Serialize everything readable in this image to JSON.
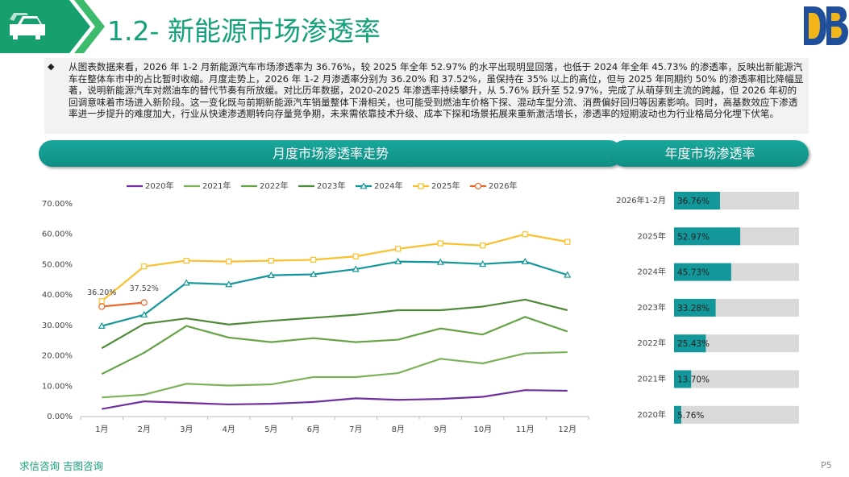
{
  "header": {
    "title": "1.2- 新能源市场渗透率"
  },
  "summary": {
    "text": "从图表数据来看，2026 年 1-2 月新能源汽车市场渗透率为 36.76%，较 2025 年全年 52.97% 的水平出现明显回落，也低于 2024 年全年 45.73% 的渗透率，反映出新能源汽车在整体车市中的占比暂时收缩。月度走势上，2026 年 1-2 月渗透率分别为 36.20% 和 37.52%，虽保持在 35% 以上的高位，但与 2025 年同期约 50% 的渗透率相比降幅显著，说明新能源汽车对燃油车的替代节奏有所放缓。对比历年数据，2020-2025 年渗透率持续攀升，从 5.76% 跃升至 52.97%，完成了从萌芽到主流的跨越，但 2026 年初的回调意味着市场进入新阶段。这一变化既与前期新能源汽车销量整体下滑相关，也可能受到燃油车价格下探、混动车型分流、消费偏好回归等因素影响。同时，高基数效应下渗透率进一步提升的难度加大，行业从快速渗透期转向存量竞争期，未来需依靠技术升级、成本下探和场景拓展来重新激活增长，渗透率的短期波动也为行业格局分化埋下伏笔。"
  },
  "chart_data": [
    {
      "type": "line",
      "title": "月度市场渗透率走势",
      "categories": [
        "1月",
        "2月",
        "3月",
        "4月",
        "5月",
        "6月",
        "7月",
        "8月",
        "9月",
        "10月",
        "11月",
        "12月"
      ],
      "series": [
        {
          "name": "2020年",
          "color": "#7030a0",
          "values": [
            2.5,
            5.0,
            4.5,
            4.0,
            4.2,
            4.8,
            6.0,
            5.5,
            5.8,
            6.5,
            8.7,
            8.5
          ]
        },
        {
          "name": "2021年",
          "color": "#7cb35a",
          "values": [
            6.3,
            7.2,
            10.8,
            10.2,
            10.6,
            13.0,
            13.0,
            14.3,
            19.0,
            17.5,
            20.8,
            21.2
          ]
        },
        {
          "name": "2022年",
          "color": "#64a444",
          "values": [
            14.0,
            21.0,
            29.8,
            26.0,
            24.5,
            25.8,
            24.5,
            25.3,
            29.0,
            27.0,
            32.8,
            28.0
          ]
        },
        {
          "name": "2023年",
          "color": "#4e8b36",
          "values": [
            22.5,
            30.5,
            32.3,
            30.3,
            31.5,
            32.5,
            33.5,
            35.0,
            35.0,
            36.2,
            38.5,
            35.0
          ]
        },
        {
          "name": "2024年",
          "color": "#13979a",
          "marker": "triangle",
          "values": [
            29.8,
            33.5,
            44.0,
            43.5,
            46.5,
            46.8,
            48.5,
            51.0,
            50.8,
            50.2,
            51.0,
            46.6
          ]
        },
        {
          "name": "2025年",
          "color": "#fbc02d",
          "marker": "square",
          "values": [
            38.0,
            49.4,
            51.3,
            51.0,
            51.3,
            51.6,
            52.7,
            55.2,
            57.0,
            56.3,
            60.0,
            57.5
          ]
        },
        {
          "name": "2026年",
          "color": "#e8692a",
          "marker": "circle",
          "values": [
            36.2,
            37.52,
            null,
            null,
            null,
            null,
            null,
            null,
            null,
            null,
            null,
            null
          ],
          "value_labels": [
            "36.20%",
            "37.52%",
            null,
            null,
            null,
            null,
            null,
            null,
            null,
            null,
            null,
            null
          ]
        }
      ],
      "ylim": [
        0,
        70
      ],
      "yticks": [
        {
          "value": 0,
          "label": "0.00%"
        },
        {
          "value": 10,
          "label": "10.00%"
        },
        {
          "value": 20,
          "label": "20.00%"
        },
        {
          "value": 30,
          "label": "30.00%"
        },
        {
          "value": 40,
          "label": "40.00%"
        },
        {
          "value": 50,
          "label": "50.00%"
        },
        {
          "value": 60,
          "label": "60.00%"
        },
        {
          "value": 70,
          "label": "70.00%"
        }
      ],
      "grid": false,
      "legend": "top"
    },
    {
      "type": "hbar",
      "title": "年度市场渗透率",
      "categories": [
        "2026年1-2月",
        "2025年",
        "2024年",
        "2023年",
        "2022年",
        "2021年",
        "2020年"
      ],
      "values": [
        36.76,
        52.97,
        45.73,
        33.28,
        25.43,
        13.7,
        5.76
      ],
      "value_labels": [
        "36.76%",
        "52.97%",
        "45.73%",
        "33.28%",
        "25.43%",
        "13.70%",
        "5.76%"
      ],
      "color": "#13979a",
      "xlim": [
        0,
        100
      ]
    }
  ],
  "footer": {
    "brand": "求信咨询 吉图咨询",
    "page": "P5"
  }
}
